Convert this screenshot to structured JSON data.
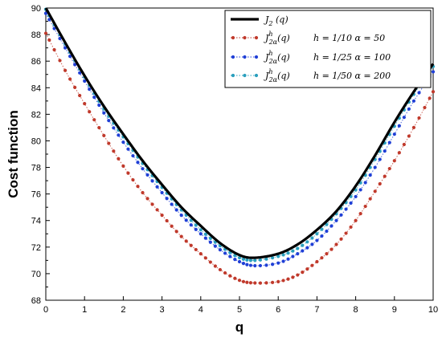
{
  "chart_data": {
    "type": "line",
    "title": "",
    "xlabel": "q",
    "ylabel": "Cost function",
    "xlim": [
      0,
      10
    ],
    "ylim": [
      68,
      90
    ],
    "xticks": [
      0,
      1,
      2,
      3,
      4,
      5,
      6,
      7,
      8,
      9,
      10
    ],
    "yticks": [
      68,
      70,
      72,
      74,
      76,
      78,
      80,
      82,
      84,
      86,
      88,
      90
    ],
    "grid": false,
    "legend_position": "top-right",
    "series": [
      {
        "name": "J₂ (q)",
        "name_main": "J",
        "name_sub": "2",
        "name_arg": " (q)",
        "params": "",
        "color": "#000000",
        "style": "solid",
        "x": [
          0,
          0.5,
          1,
          1.5,
          2,
          2.5,
          3,
          3.5,
          4,
          4.5,
          5,
          5.4,
          6,
          6.5,
          7,
          7.5,
          8,
          8.5,
          9,
          9.5,
          10
        ],
        "y": [
          90.0,
          87.4,
          84.9,
          82.6,
          80.5,
          78.5,
          76.7,
          75.0,
          73.6,
          72.3,
          71.4,
          71.2,
          71.5,
          72.2,
          73.3,
          74.7,
          76.6,
          78.9,
          81.4,
          83.7,
          85.8
        ]
      },
      {
        "name": "J^h_2α(q)  h = 1/10 α = 50",
        "name_main": "J",
        "name_sub": "2α",
        "name_sup": "h",
        "name_arg": "(q)",
        "params": "h = 1/10 α = 50",
        "color": "#c0392b",
        "style": "dotted-markers",
        "x": [
          0,
          0.5,
          1,
          1.5,
          2,
          2.5,
          3,
          3.5,
          4,
          4.5,
          5,
          5.4,
          6,
          6.5,
          7,
          7.5,
          8,
          8.5,
          9,
          9.5,
          10
        ],
        "y": [
          88.1,
          85.3,
          82.8,
          80.4,
          78.1,
          76.1,
          74.4,
          72.8,
          71.5,
          70.3,
          69.5,
          69.3,
          69.4,
          69.9,
          70.9,
          72.2,
          74.0,
          76.2,
          78.5,
          81.0,
          83.7
        ]
      },
      {
        "name": "J^h_2α(q)  h = 1/25 α = 100",
        "name_main": "J",
        "name_sub": "2α",
        "name_sup": "h",
        "name_arg": "(q)",
        "params": "h = 1/25 α = 100",
        "color": "#1f3fd6",
        "style": "dotted-markers",
        "x": [
          0,
          0.5,
          1,
          1.5,
          2,
          2.5,
          3,
          3.5,
          4,
          4.5,
          5,
          5.4,
          6,
          6.5,
          7,
          7.5,
          8,
          8.5,
          9,
          9.5,
          10
        ],
        "y": [
          89.6,
          87.0,
          84.5,
          82.1,
          79.9,
          77.9,
          76.1,
          74.4,
          73.0,
          71.8,
          70.9,
          70.6,
          70.8,
          71.5,
          72.5,
          74.0,
          75.8,
          78.0,
          80.5,
          83.0,
          85.2
        ]
      },
      {
        "name": "J^h_2α(q)  h = 1/50 α = 200",
        "name_main": "J",
        "name_sub": "2α",
        "name_sup": "h",
        "name_arg": "(q)",
        "params": "h = 1/50 α = 200",
        "color": "#2a9fbd",
        "style": "dotted-markers",
        "x": [
          0,
          0.5,
          1,
          1.5,
          2,
          2.5,
          3,
          3.5,
          4,
          4.5,
          5,
          5.4,
          6,
          6.5,
          7,
          7.5,
          8,
          8.5,
          9,
          9.5,
          10
        ],
        "y": [
          89.9,
          87.3,
          84.8,
          82.4,
          80.3,
          78.3,
          76.5,
          74.8,
          73.3,
          72.1,
          71.2,
          71.0,
          71.3,
          71.9,
          73.0,
          74.5,
          76.3,
          78.6,
          81.1,
          83.5,
          85.6
        ]
      }
    ]
  }
}
